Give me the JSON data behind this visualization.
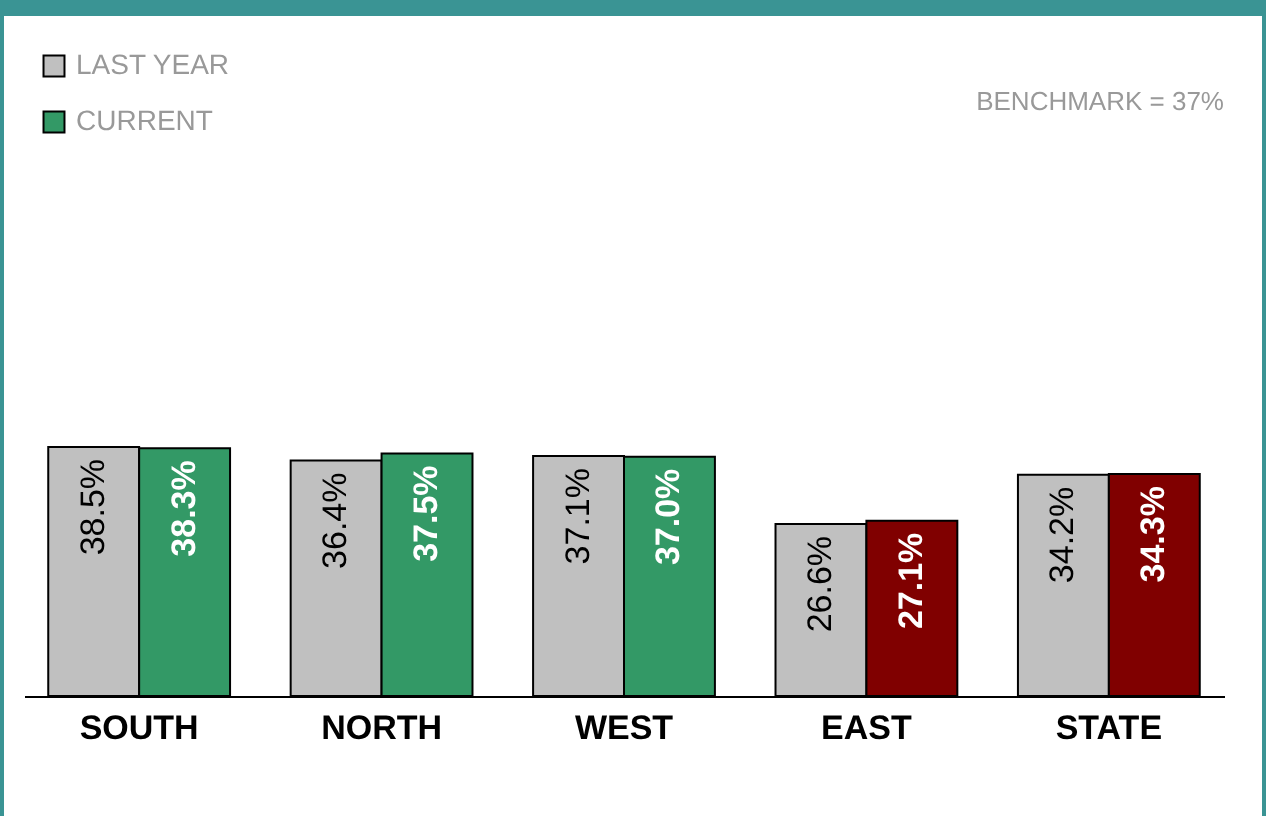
{
  "chart_data": {
    "type": "bar",
    "categories": [
      "SOUTH",
      "NORTH",
      "WEST",
      "EAST",
      "STATE"
    ],
    "series": [
      {
        "name": "LAST YEAR",
        "color": "#c0c0c0",
        "values": [
          38.5,
          36.4,
          37.1,
          26.6,
          34.2
        ],
        "value_labels": [
          "38.5%",
          "36.4%",
          "37.1%",
          "26.6%",
          "34.2%"
        ]
      },
      {
        "name": "CURRENT",
        "color": "#339966",
        "colors": [
          "#339966",
          "#339966",
          "#339966",
          "#800000",
          "#800000"
        ],
        "values": [
          38.3,
          37.5,
          37.0,
          27.1,
          34.3
        ],
        "value_labels": [
          "38.3%",
          "37.5%",
          "37.0%",
          "27.1%",
          "34.3%"
        ]
      }
    ],
    "legend": "top left",
    "grid": false,
    "annotations": [
      "BENCHMARK = 37%"
    ]
  }
}
